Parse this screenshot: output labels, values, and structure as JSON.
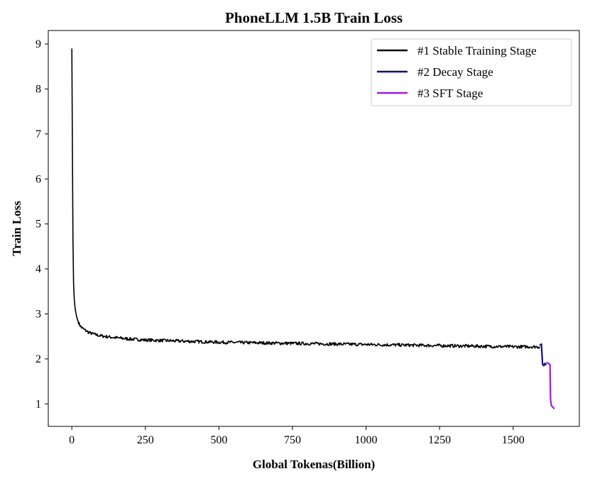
{
  "chart_data": {
    "type": "line",
    "title": "PhoneLLM 1.5B Train Loss",
    "xlabel": "Global Tokenas(Billion)",
    "ylabel": "Train Loss",
    "xlim": [
      -80,
      1725
    ],
    "ylim": [
      0.5,
      9.3
    ],
    "xticks": [
      0,
      250,
      500,
      750,
      1000,
      1250,
      1500
    ],
    "yticks": [
      1,
      2,
      3,
      4,
      5,
      6,
      7,
      8,
      9
    ],
    "grid": false,
    "legend_position": "top-right",
    "series": [
      {
        "name": "#1 Stable Training Stage",
        "color": "#000000",
        "x": [
          0,
          2,
          4,
          6,
          8,
          10,
          13,
          16,
          20,
          25,
          30,
          40,
          50,
          60,
          80,
          100,
          150,
          200,
          250,
          300,
          400,
          500,
          600,
          700,
          800,
          900,
          1000,
          1100,
          1200,
          1300,
          1400,
          1500,
          1560,
          1590
        ],
        "y": [
          8.9,
          6.6,
          4.6,
          3.7,
          3.35,
          3.2,
          3.05,
          2.95,
          2.86,
          2.78,
          2.72,
          2.66,
          2.62,
          2.58,
          2.54,
          2.51,
          2.47,
          2.44,
          2.42,
          2.41,
          2.39,
          2.37,
          2.36,
          2.35,
          2.34,
          2.33,
          2.32,
          2.31,
          2.3,
          2.29,
          2.28,
          2.27,
          2.27,
          2.27
        ]
      },
      {
        "name": "#2 Decay Stage",
        "color": "#0d0d80",
        "x": [
          1590,
          1596,
          1600,
          1604,
          1608,
          1612
        ],
        "y": [
          2.3,
          2.33,
          1.88,
          1.85,
          1.9,
          1.86
        ]
      },
      {
        "name": "#3 SFT Stage",
        "color": "#9b1fd0",
        "x": [
          1612,
          1620,
          1625,
          1627,
          1630,
          1640
        ],
        "y": [
          1.92,
          1.9,
          1.88,
          1.1,
          0.96,
          0.89
        ]
      }
    ]
  }
}
